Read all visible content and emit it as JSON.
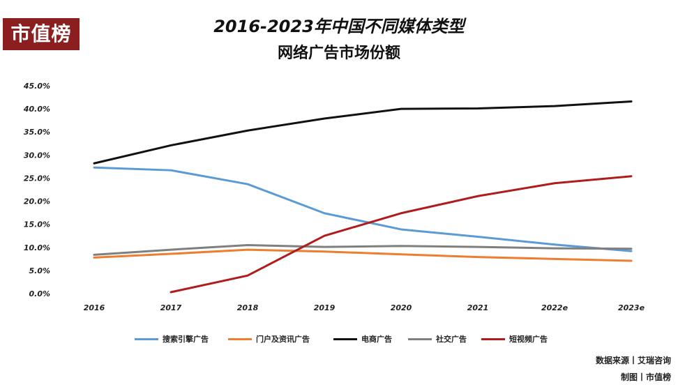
{
  "brand": {
    "logo_text": "市值榜"
  },
  "chart_data": {
    "type": "line",
    "title": "2016-2023年中国不同媒体类型",
    "subtitle": "网络广告市场份额",
    "xlabel": "",
    "ylabel": "",
    "ylim": [
      0,
      45
    ],
    "yticks": [
      "0.0%",
      "5.0%",
      "10.0%",
      "15.0%",
      "20.0%",
      "25.0%",
      "30.0%",
      "35.0%",
      "40.0%",
      "45.0%"
    ],
    "categories": [
      "2016",
      "2017",
      "2018",
      "2019",
      "2020",
      "2021",
      "2022e",
      "2023e"
    ],
    "series": [
      {
        "name": "搜索引擎广告",
        "color": "#5b9bd5",
        "values": [
          27.3,
          26.7,
          23.7,
          17.4,
          13.9,
          12.3,
          10.6,
          9.2
        ]
      },
      {
        "name": "门户及资讯广告",
        "color": "#ed7d31",
        "values": [
          7.8,
          8.6,
          9.5,
          9.1,
          8.5,
          7.9,
          7.5,
          7.1
        ]
      },
      {
        "name": "电商广告",
        "color": "#111111",
        "values": [
          28.2,
          32.1,
          35.3,
          37.9,
          40.0,
          40.1,
          40.6,
          41.6
        ]
      },
      {
        "name": "社交广告",
        "color": "#7f7f7f",
        "values": [
          8.4,
          9.5,
          10.5,
          10.1,
          10.3,
          10.1,
          9.8,
          9.7
        ]
      },
      {
        "name": "短视频广告",
        "color": "#b01c1c",
        "values": [
          null,
          0.3,
          3.9,
          12.5,
          17.4,
          21.1,
          23.9,
          25.4
        ]
      }
    ],
    "legend_position": "bottom"
  },
  "footer": {
    "source": "数据来源丨艾瑞咨询",
    "made_by": "制图丨市值榜"
  }
}
